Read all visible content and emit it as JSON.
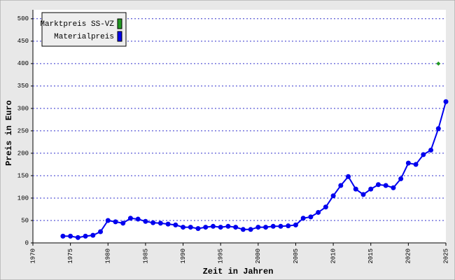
{
  "chart_data": {
    "type": "line",
    "xlabel": "Zeit in Jahren",
    "ylabel": "Preis in Euro",
    "xlim": [
      1970,
      2025
    ],
    "xticks": [
      1970,
      1975,
      1980,
      1985,
      1990,
      1995,
      2000,
      2005,
      2010,
      2015,
      2020,
      2025
    ],
    "ylim": [
      0,
      520
    ],
    "yticks": [
      0,
      50,
      100,
      150,
      200,
      250,
      300,
      350,
      400,
      450,
      500
    ],
    "grid": true,
    "legend": "upper left",
    "series": [
      {
        "name": "Marktpreis SS-VZ",
        "color": "#229922",
        "line": false,
        "x": [
          2024
        ],
        "values": [
          400
        ]
      },
      {
        "name": "Materialpreis",
        "color": "#0000ee",
        "line": true,
        "x": [
          1974,
          1975,
          1976,
          1977,
          1978,
          1979,
          1980,
          1981,
          1982,
          1983,
          1984,
          1985,
          1986,
          1987,
          1988,
          1989,
          1990,
          1991,
          1992,
          1993,
          1994,
          1995,
          1996,
          1997,
          1998,
          1999,
          2000,
          2001,
          2002,
          2003,
          2004,
          2005,
          2006,
          2007,
          2008,
          2009,
          2010,
          2011,
          2012,
          2013,
          2014,
          2015,
          2016,
          2017,
          2018,
          2019,
          2020,
          2021,
          2022,
          2023,
          2024,
          2025
        ],
        "values": [
          15,
          15,
          12,
          15,
          17,
          25,
          50,
          47,
          44,
          55,
          53,
          48,
          45,
          44,
          42,
          40,
          35,
          35,
          32,
          35,
          37,
          35,
          37,
          35,
          30,
          30,
          35,
          35,
          37,
          37,
          38,
          40,
          55,
          58,
          68,
          80,
          105,
          128,
          148,
          120,
          108,
          120,
          130,
          128,
          123,
          143,
          178,
          175,
          197,
          207,
          255,
          315
        ]
      }
    ]
  }
}
